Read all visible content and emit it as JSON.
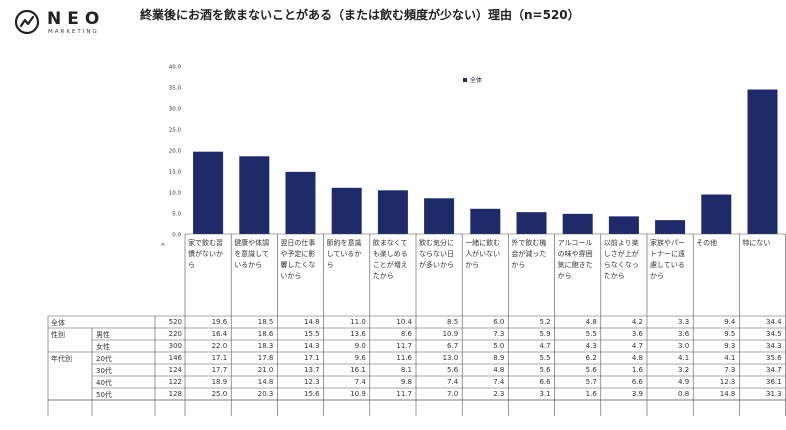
{
  "logo": {
    "name": "NEO",
    "sub": "MARKETING"
  },
  "chart_data": {
    "type": "bar",
    "title": "終業後にお酒を飲まないことがある（または飲む頻度が少ない）理由（n=520）",
    "ylim": [
      0,
      40
    ],
    "yticks": [
      "0.0",
      "5.0",
      "10.0",
      "15.0",
      "20.0",
      "25.0",
      "30.0",
      "35.0",
      "40.0"
    ],
    "y_axis_unit": "n",
    "legend": {
      "position": "top-center",
      "label": "全体"
    },
    "bar_color": "#1f2a6b",
    "categories": [
      "家で飲む習慣がないから",
      "健康や体調を意識しているから",
      "翌日の仕事や予定に影響したくないから",
      "節約を意識しているから",
      "飲まなくても楽しめることが増えたから",
      "飲む気分にならない日が多いから",
      "一緒に飲む人がいないから",
      "外で飲む機会が減ったから",
      "アルコールの味や雰囲気に飽きたから",
      "以前より楽しさが上がらなくなったから",
      "家族やパートナーに遠慮しているから",
      "その他",
      "特にない"
    ],
    "values": [
      19.6,
      18.5,
      14.8,
      11.0,
      10.4,
      8.5,
      6.0,
      5.2,
      4.8,
      4.2,
      3.3,
      9.4,
      34.4
    ],
    "table": {
      "rows": [
        {
          "group": "全体",
          "sub": "",
          "n": "520",
          "values": [
            "19.6",
            "18.5",
            "14.8",
            "11.0",
            "10.4",
            "8.5",
            "6.0",
            "5.2",
            "4.8",
            "4.2",
            "3.3",
            "9.4",
            "34.4"
          ]
        },
        {
          "group": "性別",
          "sub": "男性",
          "n": "220",
          "values": [
            "16.4",
            "18.6",
            "15.5",
            "13.6",
            "8.6",
            "10.9",
            "7.3",
            "5.9",
            "5.5",
            "3.6",
            "3.6",
            "9.5",
            "34.5"
          ]
        },
        {
          "group": "",
          "sub": "女性",
          "n": "300",
          "values": [
            "22.0",
            "18.3",
            "14.3",
            "9.0",
            "11.7",
            "6.7",
            "5.0",
            "4.7",
            "4.3",
            "4.7",
            "3.0",
            "9.3",
            "34.3"
          ]
        },
        {
          "group": "年代別",
          "sub": "20代",
          "n": "146",
          "values": [
            "17.1",
            "17.8",
            "17.1",
            "9.6",
            "11.6",
            "13.0",
            "8.9",
            "5.5",
            "6.2",
            "4.8",
            "4.1",
            "4.1",
            "35.6"
          ]
        },
        {
          "group": "",
          "sub": "30代",
          "n": "124",
          "values": [
            "17.7",
            "21.0",
            "13.7",
            "16.1",
            "8.1",
            "5.6",
            "4.8",
            "5.6",
            "5.6",
            "1.6",
            "3.2",
            "7.3",
            "34.7"
          ]
        },
        {
          "group": "",
          "sub": "40代",
          "n": "122",
          "values": [
            "18.9",
            "14.8",
            "12.3",
            "7.4",
            "9.8",
            "7.4",
            "7.4",
            "6.6",
            "5.7",
            "6.6",
            "4.9",
            "12.3",
            "36.1"
          ]
        },
        {
          "group": "",
          "sub": "50代",
          "n": "128",
          "values": [
            "25.0",
            "20.3",
            "15.6",
            "10.9",
            "11.7",
            "7.0",
            "2.3",
            "3.1",
            "1.6",
            "3.9",
            "0.8",
            "14.8",
            "31.3"
          ]
        }
      ]
    }
  }
}
